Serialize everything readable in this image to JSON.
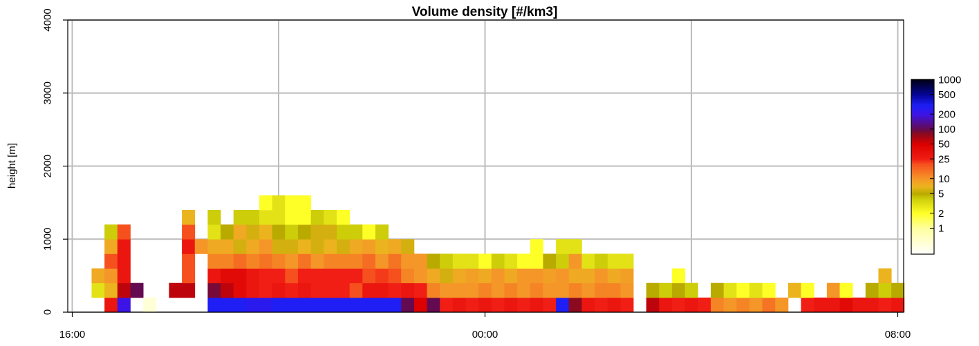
{
  "chart_data": {
    "type": "heatmap",
    "title": "Volume density [#/km3]",
    "ylabel": "height [m]",
    "xlabel": "",
    "x_ticks": [
      "16:00",
      "00:00",
      "08:00"
    ],
    "x_range_hours": [
      16.0,
      32.0
    ],
    "y_ticks": [
      0,
      1000,
      2000,
      3000,
      4000
    ],
    "ylim": [
      0,
      4000
    ],
    "grid": true,
    "bin_minutes": 15,
    "bin_height_m": 200,
    "bins_center_m": [
      100,
      300,
      500,
      700,
      900,
      1100,
      1300,
      1500
    ],
    "colorbar": {
      "position": "right",
      "scale": "log",
      "range": [
        0.3,
        1000
      ],
      "ticks": [
        1,
        2,
        5,
        10,
        25,
        50,
        100,
        200,
        500,
        1000
      ]
    },
    "series": [
      {
        "time": "16:30",
        "density": [
          null,
          3,
          8,
          null,
          null,
          null,
          null,
          null
        ]
      },
      {
        "time": "16:45",
        "density": [
          30,
          7,
          10,
          20,
          8,
          4,
          null,
          null
        ]
      },
      {
        "time": "17:00",
        "density": [
          200,
          60,
          30,
          30,
          30,
          20,
          null,
          null
        ]
      },
      {
        "time": "17:15",
        "density": [
          null,
          100,
          null,
          null,
          null,
          null,
          null,
          null
        ]
      },
      {
        "time": "17:30",
        "density": [
          0.5,
          null,
          null,
          null,
          null,
          null,
          null,
          null
        ]
      },
      {
        "time": "18:00",
        "density": [
          null,
          60,
          null,
          null,
          null,
          null,
          null,
          null
        ]
      },
      {
        "time": "18:15",
        "density": [
          null,
          60,
          20,
          20,
          30,
          20,
          7,
          null
        ]
      },
      {
        "time": "18:30",
        "density": [
          null,
          null,
          null,
          null,
          10,
          null,
          null,
          null
        ]
      },
      {
        "time": "18:45",
        "density": [
          300,
          90,
          30,
          12,
          8,
          3,
          4,
          null
        ]
      },
      {
        "time": "19:00",
        "density": [
          300,
          60,
          40,
          12,
          8,
          5,
          null,
          null
        ]
      },
      {
        "time": "19:15",
        "density": [
          300,
          40,
          40,
          15,
          6,
          8,
          4,
          null
        ]
      },
      {
        "time": "19:30",
        "density": [
          250,
          30,
          30,
          12,
          8,
          6,
          4,
          null
        ]
      },
      {
        "time": "19:45",
        "density": [
          250,
          25,
          25,
          14,
          10,
          7,
          3,
          2
        ]
      },
      {
        "time": "20:00",
        "density": [
          300,
          30,
          25,
          12,
          6,
          5,
          3,
          3
        ]
      },
      {
        "time": "20:15",
        "density": [
          300,
          25,
          20,
          10,
          6,
          4,
          2,
          2
        ]
      },
      {
        "time": "20:30",
        "density": [
          300,
          30,
          25,
          14,
          7,
          5,
          2,
          2
        ]
      },
      {
        "time": "20:45",
        "density": [
          300,
          25,
          25,
          10,
          6,
          6,
          4,
          null
        ]
      },
      {
        "time": "21:00",
        "density": [
          300,
          25,
          25,
          12,
          7,
          6,
          3,
          null
        ]
      },
      {
        "time": "21:15",
        "density": [
          300,
          25,
          25,
          12,
          6,
          4,
          2,
          null
        ]
      },
      {
        "time": "21:30",
        "density": [
          300,
          20,
          25,
          12,
          8,
          4,
          null,
          null
        ]
      },
      {
        "time": "21:45",
        "density": [
          300,
          30,
          20,
          15,
          9,
          2,
          null,
          null
        ]
      },
      {
        "time": "22:00",
        "density": [
          300,
          30,
          22,
          10,
          7,
          4,
          null,
          null
        ]
      },
      {
        "time": "22:15",
        "density": [
          300,
          25,
          20,
          14,
          8,
          null,
          null,
          null
        ]
      },
      {
        "time": "22:30",
        "density": [
          100,
          30,
          12,
          10,
          6,
          null,
          null,
          null
        ]
      },
      {
        "time": "22:45",
        "density": [
          50,
          25,
          10,
          10,
          null,
          null,
          null,
          null
        ]
      },
      {
        "time": "23:00",
        "density": [
          100,
          12,
          8,
          5,
          null,
          null,
          null,
          null
        ]
      },
      {
        "time": "23:15",
        "density": [
          25,
          10,
          6,
          4,
          null,
          null,
          null,
          null
        ]
      },
      {
        "time": "23:30",
        "density": [
          30,
          10,
          8,
          3,
          null,
          null,
          null,
          null
        ]
      },
      {
        "time": "23:45",
        "density": [
          25,
          10,
          9,
          3,
          null,
          null,
          null,
          null
        ]
      },
      {
        "time": "00:00",
        "density": [
          30,
          12,
          8,
          2,
          null,
          null,
          null,
          null
        ]
      },
      {
        "time": "00:15",
        "density": [
          25,
          10,
          10,
          4,
          null,
          null,
          null,
          null
        ]
      },
      {
        "time": "00:30",
        "density": [
          30,
          12,
          8,
          3,
          null,
          null,
          null,
          null
        ]
      },
      {
        "time": "00:45",
        "density": [
          25,
          10,
          10,
          2,
          null,
          null,
          null,
          null
        ]
      },
      {
        "time": "01:00",
        "density": [
          30,
          12,
          10,
          2,
          2,
          null,
          null,
          null
        ]
      },
      {
        "time": "01:15",
        "density": [
          25,
          10,
          9,
          5,
          null,
          null,
          null,
          null
        ]
      },
      {
        "time": "01:30",
        "density": [
          300,
          10,
          10,
          4,
          3,
          null,
          null,
          null
        ]
      },
      {
        "time": "01:45",
        "density": [
          80,
          12,
          8,
          10,
          3,
          null,
          null,
          null
        ]
      },
      {
        "time": "02:00",
        "density": [
          30,
          10,
          8,
          3,
          null,
          null,
          null,
          null
        ]
      },
      {
        "time": "02:15",
        "density": [
          25,
          12,
          10,
          4,
          null,
          null,
          null,
          null
        ]
      },
      {
        "time": "02:30",
        "density": [
          30,
          12,
          8,
          3,
          null,
          null,
          null,
          null
        ]
      },
      {
        "time": "02:45",
        "density": [
          25,
          10,
          9,
          3,
          null,
          null,
          null,
          null
        ]
      },
      {
        "time": "03:15",
        "density": [
          60,
          5,
          null,
          null,
          null,
          null,
          null,
          null
        ]
      },
      {
        "time": "03:30",
        "density": [
          30,
          4,
          null,
          null,
          null,
          null,
          null,
          null
        ]
      },
      {
        "time": "03:45",
        "density": [
          25,
          5,
          2,
          null,
          null,
          null,
          null,
          null
        ]
      },
      {
        "time": "04:00",
        "density": [
          30,
          4,
          null,
          null,
          null,
          null,
          null,
          null
        ]
      },
      {
        "time": "04:15",
        "density": [
          25,
          null,
          null,
          null,
          null,
          null,
          null,
          null
        ]
      },
      {
        "time": "04:30",
        "density": [
          12,
          5,
          null,
          null,
          null,
          null,
          null,
          null
        ]
      },
      {
        "time": "04:45",
        "density": [
          10,
          3,
          null,
          null,
          null,
          null,
          null,
          null
        ]
      },
      {
        "time": "05:00",
        "density": [
          12,
          2,
          null,
          null,
          null,
          null,
          null,
          null
        ]
      },
      {
        "time": "05:15",
        "density": [
          10,
          3,
          null,
          null,
          null,
          null,
          null,
          null
        ]
      },
      {
        "time": "05:30",
        "density": [
          14,
          2,
          null,
          null,
          null,
          null,
          null,
          null
        ]
      },
      {
        "time": "05:45",
        "density": [
          10,
          null,
          null,
          null,
          null,
          null,
          null,
          null
        ]
      },
      {
        "time": "06:00",
        "density": [
          null,
          7,
          null,
          null,
          null,
          null,
          null,
          null
        ]
      },
      {
        "time": "06:15",
        "density": [
          25,
          2,
          null,
          null,
          null,
          null,
          null,
          null
        ]
      },
      {
        "time": "06:30",
        "density": [
          30,
          null,
          null,
          null,
          null,
          null,
          null,
          null
        ]
      },
      {
        "time": "06:45",
        "density": [
          30,
          10,
          null,
          null,
          null,
          null,
          null,
          null
        ]
      },
      {
        "time": "07:00",
        "density": [
          40,
          2,
          null,
          null,
          null,
          null,
          null,
          null
        ]
      },
      {
        "time": "07:15",
        "density": [
          30,
          null,
          null,
          null,
          null,
          null,
          null,
          null
        ]
      },
      {
        "time": "07:30",
        "density": [
          30,
          5,
          null,
          null,
          null,
          null,
          null,
          null
        ]
      },
      {
        "time": "07:45",
        "density": [
          25,
          4,
          7,
          null,
          null,
          null,
          null,
          null
        ]
      },
      {
        "time": "08:00",
        "density": [
          30,
          5,
          null,
          null,
          null,
          null,
          null,
          null
        ]
      }
    ]
  }
}
